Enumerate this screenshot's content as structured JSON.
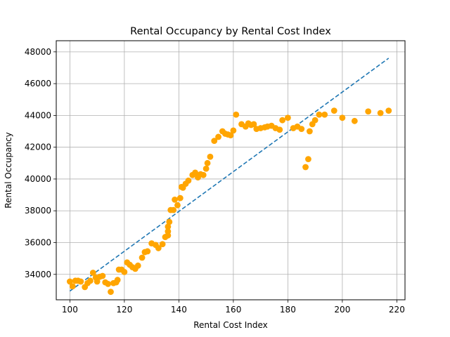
{
  "chart_data": {
    "type": "scatter",
    "title": "Rental Occupancy by Rental Cost Index",
    "xlabel": "Rental Cost Index",
    "ylabel": "Rental Occupancy",
    "xlim": [
      95,
      223
    ],
    "ylim": [
      32400,
      48700
    ],
    "x_ticks": [
      100,
      120,
      140,
      160,
      180,
      200,
      220
    ],
    "y_ticks": [
      34000,
      36000,
      38000,
      40000,
      42000,
      44000,
      46000,
      48000
    ],
    "grid": true,
    "point_color": "#ffa500",
    "trend_color": "#1f77b4",
    "points": [
      [
        100,
        33550
      ],
      [
        101,
        33250
      ],
      [
        102,
        33600
      ],
      [
        103,
        33600
      ],
      [
        104,
        33550
      ],
      [
        105.5,
        33200
      ],
      [
        106.5,
        33450
      ],
      [
        107.5,
        33600
      ],
      [
        108.5,
        34100
      ],
      [
        109.5,
        33800
      ],
      [
        110,
        33550
      ],
      [
        111,
        33850
      ],
      [
        112,
        33900
      ],
      [
        113,
        33500
      ],
      [
        114,
        33400
      ],
      [
        115,
        32900
      ],
      [
        116,
        33450
      ],
      [
        117,
        33500
      ],
      [
        117.5,
        33650
      ],
      [
        118,
        34300
      ],
      [
        119,
        34300
      ],
      [
        120,
        34150
      ],
      [
        121,
        34750
      ],
      [
        122,
        34600
      ],
      [
        123,
        34450
      ],
      [
        124,
        34350
      ],
      [
        125,
        34550
      ],
      [
        126.5,
        35050
      ],
      [
        127.5,
        35400
      ],
      [
        128.5,
        35450
      ],
      [
        130,
        35950
      ],
      [
        131.5,
        35850
      ],
      [
        132.5,
        35650
      ],
      [
        134,
        35900
      ],
      [
        135,
        36350
      ],
      [
        136,
        36450
      ],
      [
        136,
        36700
      ],
      [
        136,
        37000
      ],
      [
        136.5,
        37300
      ],
      [
        137,
        38050
      ],
      [
        138,
        38050
      ],
      [
        138.5,
        38700
      ],
      [
        139.5,
        38350
      ],
      [
        140.5,
        38800
      ],
      [
        141,
        39500
      ],
      [
        141.5,
        39450
      ],
      [
        142.5,
        39700
      ],
      [
        143.5,
        39900
      ],
      [
        145,
        40250
      ],
      [
        146,
        40400
      ],
      [
        147,
        40100
      ],
      [
        148,
        40300
      ],
      [
        149,
        40250
      ],
      [
        150,
        40650
      ],
      [
        150.5,
        41000
      ],
      [
        151.5,
        41400
      ],
      [
        153,
        42400
      ],
      [
        154.5,
        42650
      ],
      [
        156,
        43000
      ],
      [
        157,
        42850
      ],
      [
        158,
        42800
      ],
      [
        159,
        42750
      ],
      [
        160,
        43050
      ],
      [
        161,
        44050
      ],
      [
        163,
        43450
      ],
      [
        164.5,
        43300
      ],
      [
        165.5,
        43500
      ],
      [
        166.5,
        43400
      ],
      [
        167.5,
        43450
      ],
      [
        168.5,
        43150
      ],
      [
        170,
        43200
      ],
      [
        171.5,
        43250
      ],
      [
        172.5,
        43300
      ],
      [
        174,
        43350
      ],
      [
        175.5,
        43200
      ],
      [
        177,
        43100
      ],
      [
        178,
        43700
      ],
      [
        180,
        43850
      ],
      [
        182,
        43200
      ],
      [
        183.5,
        43300
      ],
      [
        185,
        43150
      ],
      [
        186.5,
        40750
      ],
      [
        187.5,
        41250
      ],
      [
        188,
        43000
      ],
      [
        189,
        43450
      ],
      [
        190,
        43700
      ],
      [
        191.5,
        44050
      ],
      [
        193.5,
        44050
      ],
      [
        197,
        44300
      ],
      [
        200,
        43850
      ],
      [
        204.5,
        43650
      ],
      [
        209.5,
        44250
      ],
      [
        214,
        44150
      ],
      [
        217,
        44300
      ]
    ],
    "trend_line": {
      "x": [
        100,
        217
      ],
      "y": [
        32950,
        47600
      ]
    }
  }
}
